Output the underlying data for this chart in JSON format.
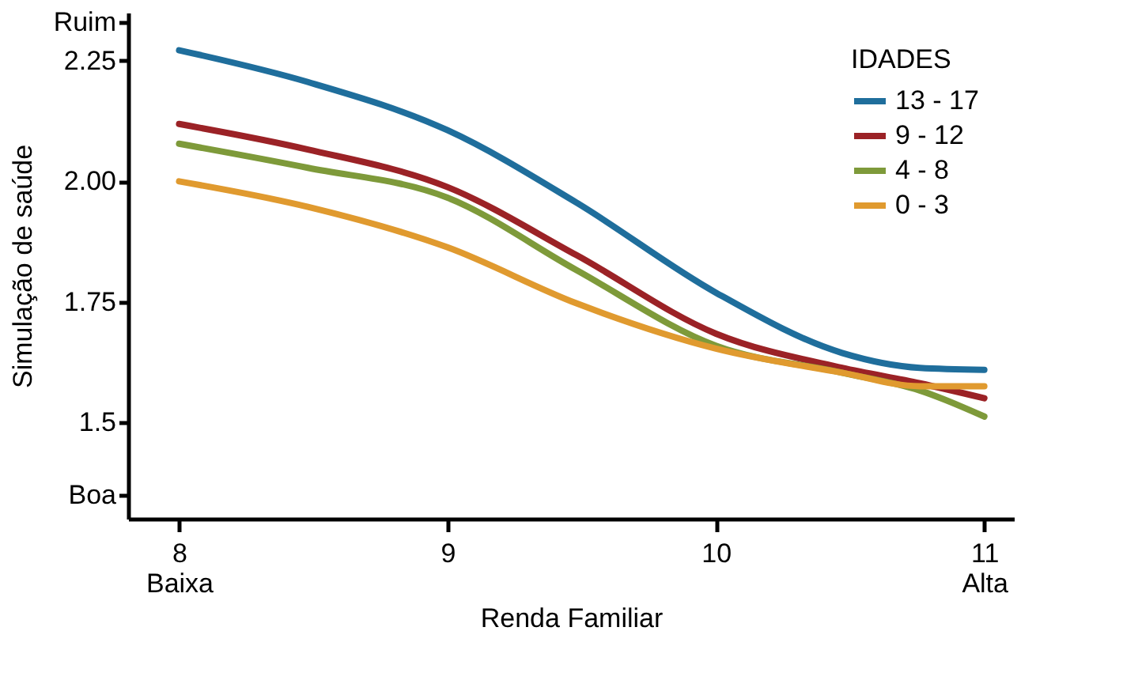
{
  "chart_data": {
    "type": "line",
    "xlabel": "Renda Familiar",
    "ylabel": "Simulação de saúde",
    "legend_title": "IDADES",
    "legend": "top right",
    "grid": false,
    "marker": "none",
    "line_style": "solid",
    "xlim": [
      7.81,
      11.11
    ],
    "xticks": [
      {
        "value": 8,
        "label": "8\nBaixa"
      },
      9,
      10,
      {
        "value": 11,
        "label": "11\nAlta"
      }
    ],
    "ylim": [
      1.3,
      2.35
    ],
    "yticks": [
      {
        "value": 1.35,
        "label": "Boa"
      },
      1.5,
      1.75,
      {
        "value": 2.0,
        "label": "2.00"
      },
      2.25,
      {
        "value": 2.33,
        "label": "Ruim"
      }
    ],
    "x": [
      8,
      8.48,
      9,
      9.48,
      10,
      10.47,
      10.76,
      11
    ],
    "series": [
      {
        "name": "13 - 17",
        "color": "#1f6e9c",
        "values": [
          2.272,
          2.206,
          2.106,
          1.956,
          1.769,
          1.644,
          1.613,
          1.609
        ]
      },
      {
        "name": "9 - 12",
        "color": "#9b2226",
        "values": [
          2.119,
          2.066,
          1.988,
          1.847,
          1.684,
          1.613,
          1.581,
          1.55
        ]
      },
      {
        "name": "4 - 8",
        "color": "#7e9a3a",
        "values": [
          2.078,
          2.028,
          1.966,
          1.816,
          1.659,
          1.603,
          1.566,
          1.512
        ]
      },
      {
        "name": "0 - 3",
        "color": "#e09a2f",
        "values": [
          2.0,
          1.947,
          1.863,
          1.747,
          1.653,
          1.603,
          1.575,
          1.575
        ]
      }
    ]
  }
}
